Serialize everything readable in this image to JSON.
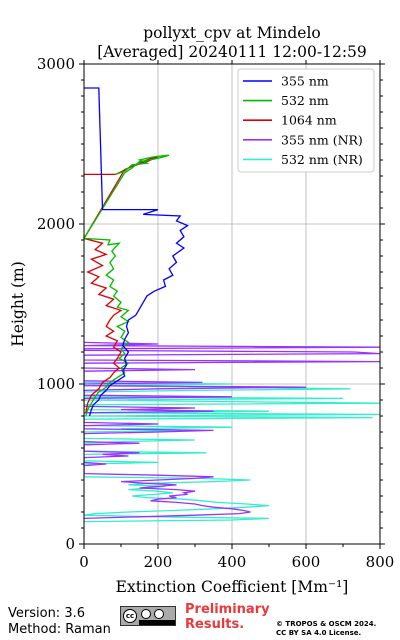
{
  "chart_data": {
    "type": "line",
    "title": "pollyxt_cpv at Mindelo",
    "subtitle": "[Averaged] 20240111 12:00-12:59",
    "xlabel": "Extinction Coefficient [Mm⁻¹]",
    "ylabel": "Height (m)",
    "xlim": [
      0,
      800
    ],
    "ylim": [
      0,
      3000
    ],
    "xticks": [
      "0",
      "200",
      "400",
      "600",
      "800"
    ],
    "yticks": [
      "0",
      "1000",
      "2000",
      "3000"
    ],
    "grid": true,
    "legend": "top-right",
    "series": [
      {
        "name": "355 nm",
        "color": "#0000ff",
        "points": [
          [
            0,
            2850
          ],
          [
            40,
            2850
          ],
          [
            50,
            2090
          ],
          [
            200,
            2090
          ],
          [
            160,
            2060
          ],
          [
            260,
            2050
          ],
          [
            250,
            2020
          ],
          [
            280,
            1990
          ],
          [
            260,
            1960
          ],
          [
            270,
            1920
          ],
          [
            250,
            1880
          ],
          [
            270,
            1850
          ],
          [
            240,
            1800
          ],
          [
            250,
            1760
          ],
          [
            230,
            1720
          ],
          [
            240,
            1680
          ],
          [
            215,
            1650
          ],
          [
            220,
            1610
          ],
          [
            190,
            1580
          ],
          [
            170,
            1550
          ],
          [
            160,
            1510
          ],
          [
            150,
            1470
          ],
          [
            140,
            1430
          ],
          [
            120,
            1400
          ],
          [
            115,
            1360
          ],
          [
            120,
            1320
          ],
          [
            110,
            1280
          ],
          [
            105,
            1240
          ],
          [
            120,
            1200
          ],
          [
            110,
            1160
          ],
          [
            115,
            1120
          ],
          [
            105,
            1080
          ],
          [
            110,
            1050
          ],
          [
            90,
            1020
          ],
          [
            70,
            990
          ],
          [
            60,
            960
          ],
          [
            45,
            930
          ],
          [
            40,
            900
          ],
          [
            25,
            870
          ],
          [
            20,
            840
          ],
          [
            15,
            800
          ]
        ]
      },
      {
        "name": "532 nm",
        "color": "#00bb00",
        "points": [
          [
            85,
            2310
          ],
          [
            110,
            2330
          ],
          [
            130,
            2370
          ],
          [
            170,
            2380
          ],
          [
            150,
            2400
          ],
          [
            190,
            2420
          ],
          [
            230,
            2430
          ],
          [
            200,
            2410
          ],
          [
            150,
            2390
          ],
          [
            130,
            2350
          ],
          [
            110,
            2320
          ],
          [
            0,
            1910
          ],
          [
            70,
            1900
          ],
          [
            65,
            1870
          ],
          [
            95,
            1880
          ],
          [
            75,
            1830
          ],
          [
            85,
            1800
          ],
          [
            70,
            1760
          ],
          [
            80,
            1720
          ],
          [
            60,
            1680
          ],
          [
            80,
            1650
          ],
          [
            70,
            1610
          ],
          [
            90,
            1580
          ],
          [
            80,
            1550
          ],
          [
            100,
            1510
          ],
          [
            90,
            1480
          ],
          [
            120,
            1460
          ],
          [
            100,
            1420
          ],
          [
            120,
            1390
          ],
          [
            90,
            1360
          ],
          [
            110,
            1330
          ],
          [
            100,
            1290
          ],
          [
            120,
            1260
          ],
          [
            100,
            1220
          ],
          [
            110,
            1190
          ],
          [
            95,
            1160
          ],
          [
            120,
            1130
          ],
          [
            100,
            1100
          ],
          [
            110,
            1070
          ],
          [
            90,
            1040
          ],
          [
            70,
            1010
          ],
          [
            60,
            980
          ],
          [
            40,
            950
          ],
          [
            30,
            920
          ],
          [
            20,
            880
          ],
          [
            10,
            840
          ],
          [
            5,
            800
          ]
        ]
      },
      {
        "name": "1064 nm",
        "color": "#dd0000",
        "points": [
          [
            0,
            2310
          ],
          [
            85,
            2310
          ],
          [
            130,
            2360
          ],
          [
            170,
            2390
          ],
          [
            200,
            2420
          ],
          [
            180,
            2410
          ],
          [
            150,
            2380
          ],
          [
            110,
            2340
          ],
          [
            0,
            1910
          ],
          [
            50,
            1880
          ],
          [
            30,
            1840
          ],
          [
            60,
            1810
          ],
          [
            20,
            1780
          ],
          [
            50,
            1740
          ],
          [
            10,
            1700
          ],
          [
            40,
            1670
          ],
          [
            20,
            1630
          ],
          [
            60,
            1600
          ],
          [
            40,
            1560
          ],
          [
            80,
            1530
          ],
          [
            60,
            1490
          ],
          [
            100,
            1460
          ],
          [
            80,
            1430
          ],
          [
            70,
            1400
          ],
          [
            60,
            1360
          ],
          [
            80,
            1330
          ],
          [
            60,
            1300
          ],
          [
            90,
            1270
          ],
          [
            80,
            1230
          ],
          [
            100,
            1200
          ],
          [
            90,
            1160
          ],
          [
            80,
            1130
          ],
          [
            95,
            1100
          ],
          [
            80,
            1070
          ],
          [
            70,
            1040
          ],
          [
            50,
            1010
          ],
          [
            40,
            970
          ],
          [
            20,
            930
          ],
          [
            10,
            880
          ],
          [
            5,
            820
          ]
        ]
      },
      {
        "name": "355 nm (NR)",
        "color": "#9933ff",
        "points": [
          [
            0,
            1260
          ],
          [
            200,
            1250
          ],
          [
            0,
            1240
          ],
          [
            800,
            1230
          ],
          [
            0,
            1220
          ],
          [
            0,
            1210
          ],
          [
            730,
            1200
          ],
          [
            800,
            1190
          ],
          [
            0,
            1180
          ],
          [
            0,
            1150
          ],
          [
            800,
            1140
          ],
          [
            0,
            1130
          ],
          [
            0,
            1100
          ],
          [
            300,
            1090
          ],
          [
            0,
            1080
          ],
          [
            0,
            1020
          ],
          [
            320,
            1010
          ],
          [
            0,
            1000
          ],
          [
            0,
            990
          ],
          [
            600,
            980
          ],
          [
            200,
            970
          ],
          [
            0,
            960
          ],
          [
            0,
            930
          ],
          [
            400,
            920
          ],
          [
            0,
            910
          ],
          [
            0,
            860
          ],
          [
            300,
            850
          ],
          [
            100,
            840
          ],
          [
            350,
            830
          ],
          [
            0,
            820
          ],
          [
            0,
            760
          ],
          [
            200,
            750
          ],
          [
            0,
            740
          ],
          [
            0,
            720
          ],
          [
            350,
            710
          ],
          [
            200,
            700
          ],
          [
            0,
            690
          ],
          [
            0,
            640
          ],
          [
            150,
            630
          ],
          [
            0,
            620
          ],
          [
            0,
            580
          ],
          [
            150,
            570
          ],
          [
            50,
            560
          ],
          [
            120,
            550
          ],
          [
            0,
            540
          ],
          [
            0,
            510
          ],
          [
            60,
            500
          ],
          [
            0,
            490
          ],
          [
            0,
            440
          ],
          [
            200,
            430
          ],
          [
            350,
            420
          ],
          [
            300,
            410
          ],
          [
            200,
            400
          ],
          [
            100,
            390
          ],
          [
            160,
            380
          ],
          [
            250,
            370
          ],
          [
            200,
            360
          ],
          [
            150,
            350
          ],
          [
            250,
            340
          ],
          [
            300,
            330
          ],
          [
            270,
            320
          ],
          [
            280,
            310
          ],
          [
            230,
            300
          ],
          [
            250,
            290
          ],
          [
            200,
            280
          ],
          [
            180,
            270
          ],
          [
            250,
            260
          ],
          [
            300,
            250
          ],
          [
            320,
            240
          ],
          [
            350,
            230
          ],
          [
            400,
            220
          ],
          [
            430,
            210
          ],
          [
            450,
            200
          ],
          [
            420,
            190
          ],
          [
            300,
            180
          ],
          [
            150,
            170
          ],
          [
            0,
            160
          ]
        ]
      },
      {
        "name": "532 nm (NR)",
        "color": "#33eecc",
        "points": [
          [
            0,
            1010
          ],
          [
            400,
            1000
          ],
          [
            0,
            990
          ],
          [
            720,
            970
          ],
          [
            300,
            960
          ],
          [
            0,
            950
          ],
          [
            0,
            920
          ],
          [
            700,
            910
          ],
          [
            0,
            900
          ],
          [
            800,
            880
          ],
          [
            0,
            870
          ],
          [
            0,
            840
          ],
          [
            500,
            830
          ],
          [
            0,
            820
          ],
          [
            800,
            810
          ],
          [
            0,
            800
          ],
          [
            780,
            790
          ],
          [
            0,
            780
          ],
          [
            0,
            740
          ],
          [
            400,
            730
          ],
          [
            100,
            720
          ],
          [
            300,
            710
          ],
          [
            0,
            700
          ],
          [
            0,
            660
          ],
          [
            300,
            650
          ],
          [
            100,
            640
          ],
          [
            0,
            630
          ],
          [
            0,
            580
          ],
          [
            330,
            570
          ],
          [
            0,
            560
          ],
          [
            0,
            520
          ],
          [
            200,
            510
          ],
          [
            0,
            500
          ],
          [
            0,
            420
          ],
          [
            320,
            410
          ],
          [
            450,
            400
          ],
          [
            350,
            390
          ],
          [
            180,
            380
          ],
          [
            120,
            370
          ],
          [
            220,
            360
          ],
          [
            170,
            350
          ],
          [
            120,
            340
          ],
          [
            200,
            330
          ],
          [
            240,
            320
          ],
          [
            190,
            310
          ],
          [
            130,
            300
          ],
          [
            170,
            290
          ],
          [
            270,
            280
          ],
          [
            320,
            270
          ],
          [
            360,
            260
          ],
          [
            440,
            250
          ],
          [
            500,
            240
          ],
          [
            440,
            230
          ],
          [
            350,
            220
          ],
          [
            250,
            210
          ],
          [
            120,
            200
          ],
          [
            30,
            190
          ],
          [
            0,
            180
          ],
          [
            200,
            170
          ],
          [
            500,
            160
          ],
          [
            400,
            150
          ],
          [
            0,
            140
          ]
        ]
      }
    ]
  },
  "footer": {
    "version": "Version: 3.6",
    "method": "Method: Raman",
    "preliminary_line1": "Preliminary",
    "preliminary_line2": "Results.",
    "copyright_line1": "© TROPOS & OSCM 2024.",
    "copyright_line2": "CC BY SA 4.0 License."
  }
}
